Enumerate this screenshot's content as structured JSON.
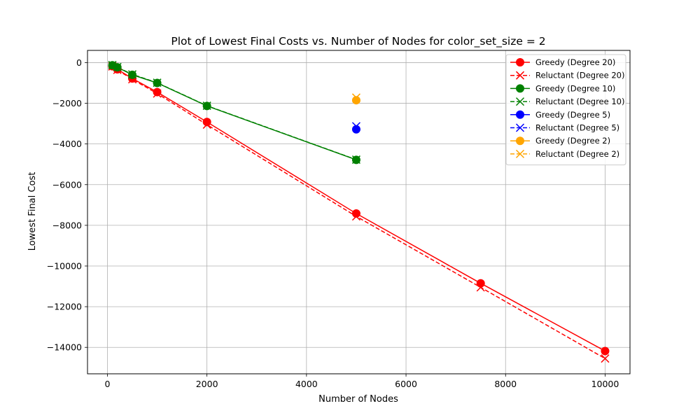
{
  "chart_data": {
    "type": "line",
    "title": "Plot of Lowest Final Costs vs. Number of Nodes for color_set_size = 2",
    "xlabel": "Number of Nodes",
    "ylabel": "Lowest Final Cost",
    "xlim": [
      -400,
      10500
    ],
    "ylim": [
      -15300,
      600
    ],
    "xticks": [
      0,
      2000,
      4000,
      6000,
      8000,
      10000
    ],
    "yticks": [
      0,
      -2000,
      -4000,
      -6000,
      -8000,
      -10000,
      -12000,
      -14000
    ],
    "xtick_labels": [
      "0",
      "2000",
      "4000",
      "6000",
      "8000",
      "10000"
    ],
    "ytick_labels": [
      "0",
      "−2000",
      "−4000",
      "−6000",
      "−8000",
      "−10000",
      "−12000",
      "−14000"
    ],
    "grid": true,
    "legend_position": "top-right",
    "series": [
      {
        "name": "Greedy (Degree 20)",
        "color": "#ff0000",
        "marker": "circle",
        "linestyle": "solid",
        "x": [
          100,
          200,
          500,
          1000,
          2000,
          5000,
          7500,
          10000
        ],
        "y": [
          -180,
          -330,
          -780,
          -1450,
          -2920,
          -7420,
          -10850,
          -14180
        ]
      },
      {
        "name": "Reluctant (Degree 20)",
        "color": "#ff0000",
        "marker": "x",
        "linestyle": "dashed",
        "x": [
          100,
          200,
          500,
          1000,
          2000,
          5000,
          7500,
          10000
        ],
        "y": [
          -190,
          -360,
          -820,
          -1520,
          -3050,
          -7560,
          -11050,
          -14550
        ]
      },
      {
        "name": "Greedy (Degree 10)",
        "color": "#008000",
        "marker": "circle",
        "linestyle": "solid",
        "x": [
          100,
          200,
          500,
          1000,
          2000,
          5000
        ],
        "y": [
          -130,
          -230,
          -600,
          -1000,
          -2130,
          -4780
        ]
      },
      {
        "name": "Reluctant (Degree 10)",
        "color": "#008000",
        "marker": "x",
        "linestyle": "dashed",
        "x": [
          100,
          200,
          500,
          1000,
          2000,
          5000
        ],
        "y": [
          -120,
          -220,
          -580,
          -990,
          -2120,
          -4770
        ]
      },
      {
        "name": "Greedy (Degree 5)",
        "color": "#0000ff",
        "marker": "circle",
        "linestyle": "solid",
        "x": [
          5000
        ],
        "y": [
          -3280
        ]
      },
      {
        "name": "Reluctant (Degree 5)",
        "color": "#0000ff",
        "marker": "x",
        "linestyle": "dashed",
        "x": [
          5000
        ],
        "y": [
          -3130
        ]
      },
      {
        "name": "Greedy (Degree 2)",
        "color": "#ffa500",
        "marker": "circle",
        "linestyle": "solid",
        "x": [
          5000
        ],
        "y": [
          -1850
        ]
      },
      {
        "name": "Reluctant (Degree 2)",
        "color": "#ffa500",
        "marker": "x",
        "linestyle": "dashed",
        "x": [
          5000
        ],
        "y": [
          -1720
        ]
      }
    ]
  }
}
